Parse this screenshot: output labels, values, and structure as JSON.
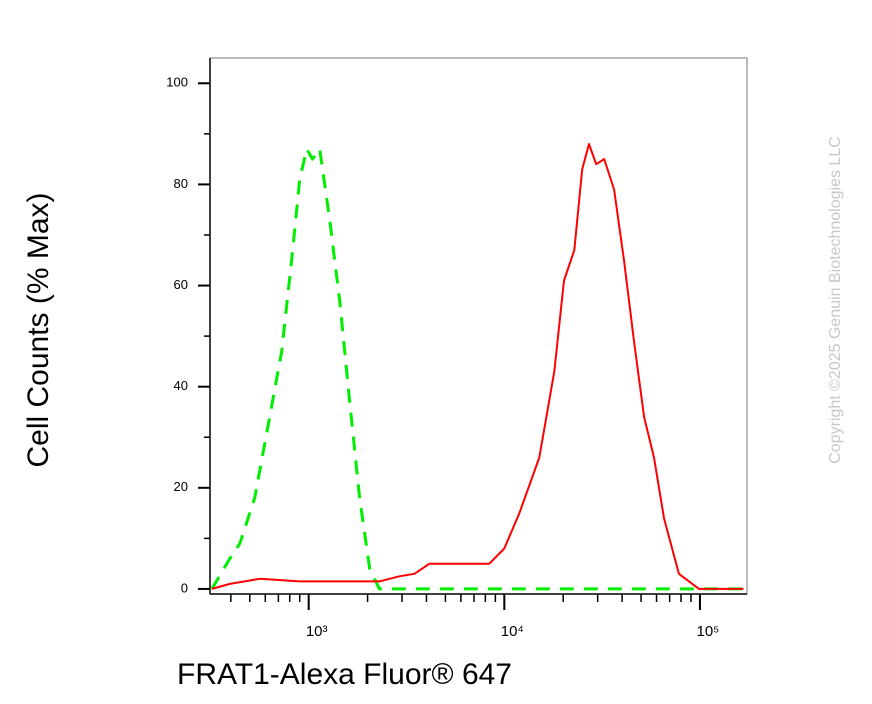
{
  "chart_data": {
    "type": "line",
    "x_label": "FRAT1-Alexa Fluor® 647",
    "y_label": "Cell Counts (% Max)",
    "annotations": [
      "Copyright ©2025 Genuin Biotechnologies LLC"
    ],
    "xscale": "log",
    "xlim": [
      313,
      174000
    ],
    "ylim": [
      -1,
      105
    ],
    "xticks": [
      {
        "value": 1000,
        "label": "10³"
      },
      {
        "value": 10000,
        "label": "10⁴"
      },
      {
        "value": 100000,
        "label": "10⁵"
      }
    ],
    "xminorticks": [
      400,
      500,
      600,
      700,
      800,
      900,
      2000,
      3000,
      4000,
      5000,
      6000,
      7000,
      8000,
      9000,
      20000,
      30000,
      40000,
      50000,
      60000,
      70000,
      80000,
      90000
    ],
    "yticks": [
      0,
      20,
      40,
      60,
      80,
      100
    ],
    "yminorticks": [
      10,
      30,
      50,
      70,
      90
    ],
    "series": [
      {
        "color": "#00ee00",
        "line_style": "dashed",
        "x": [
          320,
          395,
          445,
          530,
          618,
          728,
          828,
          900,
          977,
          1047,
          1138,
          1280,
          1440,
          1620,
          1820,
          2050,
          2300,
          2910,
          9420,
          30500,
          98900,
          167000
        ],
        "values": [
          0,
          6,
          9,
          18,
          32,
          47,
          67,
          81,
          87,
          85,
          87,
          73,
          57,
          37,
          18,
          4,
          0,
          0,
          0,
          0,
          0,
          0
        ]
      },
      {
        "color": "#ff0000",
        "line_style": "solid",
        "x": [
          320,
          395,
          562,
          900,
          2300,
          2910,
          3475,
          4140,
          5890,
          8380,
          10000,
          11940,
          15100,
          18000,
          20200,
          22800,
          25000,
          27100,
          29500,
          32400,
          36400,
          40900,
          46000,
          51800,
          58200,
          65500,
          78100,
          98900,
          167000
        ],
        "values": [
          0,
          1,
          2,
          1.5,
          1.5,
          2.5,
          3,
          5,
          5,
          5,
          8,
          15,
          26,
          43,
          61,
          67,
          83,
          88,
          84,
          85,
          79,
          65,
          49,
          34,
          26,
          14,
          3,
          0,
          0
        ]
      }
    ]
  }
}
